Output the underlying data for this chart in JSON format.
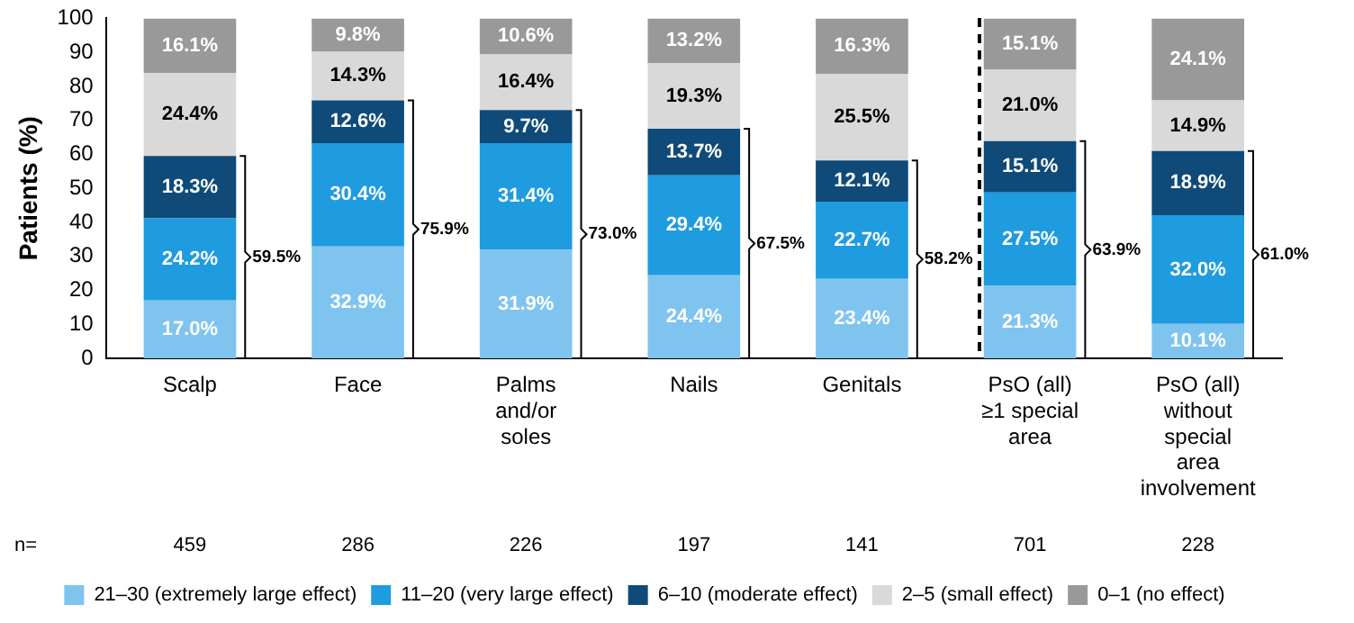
{
  "chart_data": {
    "type": "bar",
    "stacked": true,
    "ylabel": "Patients (%)",
    "categories": [
      "Scalp",
      "Face",
      "Palms and/or soles",
      "Nails",
      "Genitals",
      "PsO (all) ≥1 special area",
      "PsO (all) without special area involvement"
    ],
    "series": [
      {
        "name": "21–30 (extremely large effect)",
        "color": "#7fc4ee",
        "values": [
          17.0,
          32.9,
          31.9,
          24.4,
          23.4,
          21.3,
          10.1
        ],
        "value_labels": [
          "17.0%",
          "32.9%",
          "31.9%",
          "24.4%",
          "23.4%",
          "21.3%",
          "10.1%"
        ]
      },
      {
        "name": "11–20 (very large effect)",
        "color": "#1f9be0",
        "values": [
          24.2,
          30.4,
          31.4,
          29.4,
          22.7,
          27.5,
          32.0
        ],
        "value_labels": [
          "24.2%",
          "30.4%",
          "31.4%",
          "29.4%",
          "22.7%",
          "27.5%",
          "32.0%"
        ]
      },
      {
        "name": "6–10 (moderate effect)",
        "color": "#0f4a78",
        "values": [
          18.3,
          12.6,
          9.7,
          13.7,
          12.1,
          15.1,
          18.9
        ],
        "value_labels": [
          "18.3%",
          "12.6%",
          "9.7%",
          "13.7%",
          "12.1%",
          "15.1%",
          "18.9%"
        ]
      },
      {
        "name": "2–5 (small effect)",
        "color": "#d9d9d9",
        "values": [
          24.4,
          14.3,
          16.4,
          19.3,
          25.5,
          21.0,
          14.9
        ],
        "value_labels": [
          "24.4%",
          "14.3%",
          "16.4%",
          "19.3%",
          "25.5%",
          "21.0%",
          "14.9%"
        ]
      },
      {
        "name": "0–1 (no effect)",
        "color": "#999999",
        "values": [
          16.1,
          9.8,
          10.6,
          13.2,
          16.3,
          15.1,
          24.1
        ],
        "value_labels": [
          "16.1%",
          "9.8%",
          "10.6%",
          "13.2%",
          "16.3%",
          "15.1%",
          "24.1%"
        ]
      }
    ],
    "ylim": [
      0,
      100
    ],
    "yticks": [
      0,
      10,
      20,
      30,
      40,
      50,
      60,
      70,
      80,
      90,
      100
    ],
    "grid": false,
    "legend": "bottom",
    "annotations": [
      "59.5%",
      "75.9%",
      "73.0%",
      "67.5%",
      "58.2%",
      "63.9%",
      "61.0%",
      "n=",
      "459",
      "286",
      "226",
      "197",
      "141",
      "701",
      "228"
    ]
  }
}
